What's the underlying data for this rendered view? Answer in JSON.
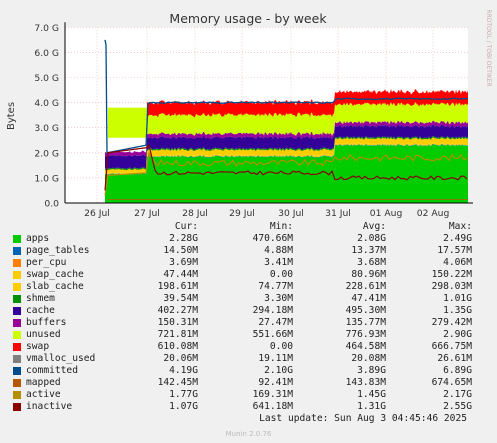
{
  "chart_data": {
    "type": "area",
    "title": "Memory usage - by week",
    "ylabel": "Bytes",
    "ylim": [
      0,
      7.0
    ],
    "yticks": [
      "0.0",
      "1.0 G",
      "2.0 G",
      "3.0 G",
      "4.0 G",
      "5.0 G",
      "6.0 G",
      "7.0 G"
    ],
    "xticks": [
      "26 Jul",
      "27 Jul",
      "28 Jul",
      "29 Jul",
      "30 Jul",
      "31 Jul",
      "01 Aug",
      "02 Aug"
    ],
    "side_label": "RRDTOOL / TOBI OETIKER",
    "grid": true,
    "series": [
      {
        "name": "apps",
        "color": "#00cc00",
        "cur": "2.28G",
        "min": "470.66M",
        "avg": "2.08G",
        "max": "2.49G"
      },
      {
        "name": "page_tables",
        "color": "#0066b3",
        "cur": "14.50M",
        "min": "4.88M",
        "avg": "13.37M",
        "max": "17.57M"
      },
      {
        "name": "per_cpu",
        "color": "#ff8000",
        "cur": "3.69M",
        "min": "3.41M",
        "avg": "3.68M",
        "max": "4.06M"
      },
      {
        "name": "swap_cache",
        "color": "#ffcc00",
        "cur": "47.44M",
        "min": "0.00",
        "avg": "80.96M",
        "max": "150.22M"
      },
      {
        "name": "slab_cache",
        "color": "#ffcc00",
        "cur": "198.61M",
        "min": "74.77M",
        "avg": "228.61M",
        "max": "298.03M"
      },
      {
        "name": "shmem",
        "color": "#008f00",
        "cur": "39.54M",
        "min": "3.30M",
        "avg": "47.41M",
        "max": "1.01G"
      },
      {
        "name": "cache",
        "color": "#330099",
        "cur": "402.27M",
        "min": "294.18M",
        "avg": "495.30M",
        "max": "1.35G"
      },
      {
        "name": "buffers",
        "color": "#990099",
        "cur": "150.31M",
        "min": "27.47M",
        "avg": "135.77M",
        "max": "279.42M"
      },
      {
        "name": "unused",
        "color": "#ccff00",
        "cur": "721.81M",
        "min": "551.66M",
        "avg": "776.93M",
        "max": "2.90G"
      },
      {
        "name": "swap",
        "color": "#ff0000",
        "cur": "610.08M",
        "min": "0.00",
        "avg": "464.58M",
        "max": "666.75M"
      },
      {
        "name": "vmalloc_used",
        "color": "#808080",
        "cur": "20.06M",
        "min": "19.11M",
        "avg": "20.08M",
        "max": "26.61M"
      },
      {
        "name": "committed",
        "color": "#004b8a",
        "cur": "4.19G",
        "min": "2.10G",
        "avg": "3.89G",
        "max": "6.89G"
      },
      {
        "name": "mapped",
        "color": "#b35900",
        "cur": "142.45M",
        "min": "92.41M",
        "avg": "143.83M",
        "max": "674.65M"
      },
      {
        "name": "active",
        "color": "#b38f00",
        "cur": "1.77G",
        "min": "169.31M",
        "avg": "1.45G",
        "max": "2.17G"
      },
      {
        "name": "inactive",
        "color": "#8a0000",
        "cur": "1.07G",
        "min": "641.18M",
        "avg": "1.31G",
        "max": "2.55G"
      }
    ]
  },
  "legend_headers": {
    "cur": "Cur:",
    "min": "Min:",
    "avg": "Avg:",
    "max": "Max:"
  },
  "last_update": "Last update: Sun Aug  3 04:45:46 2025",
  "version": "Munin 2.0.76"
}
